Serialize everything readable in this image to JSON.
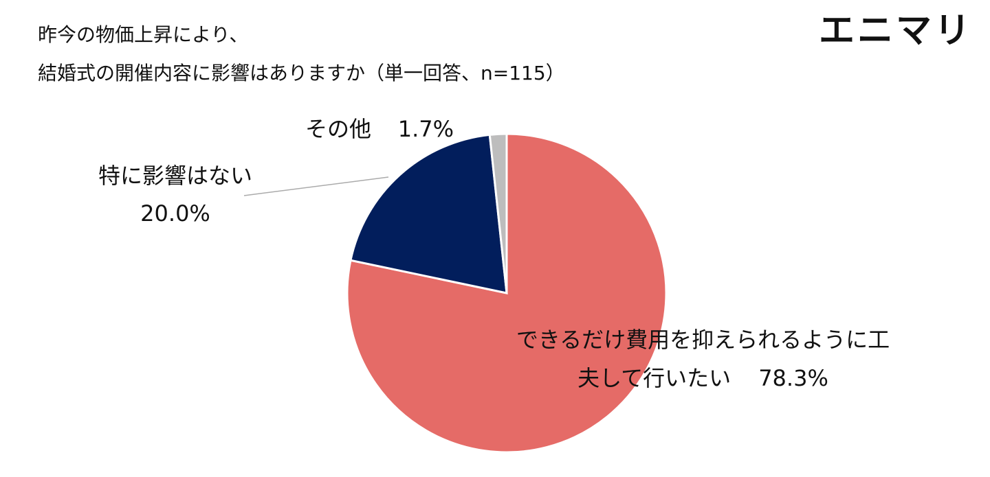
{
  "logo": "エニマリ",
  "chart_data": {
    "type": "pie",
    "title": [
      "昨今の物価上昇により、",
      "結婚式の開催内容に影響はありますか（単一回答、n=115）"
    ],
    "categories": [
      "できるだけ費用を抑えられるように工夫して行いたい",
      "特に影響はない",
      "その他"
    ],
    "values": [
      78.3,
      20.0,
      1.7
    ],
    "value_labels": [
      "78.3%",
      "20.0%",
      "1.7%"
    ],
    "colors": [
      "#e56b67",
      "#021e5c",
      "#bdbdbd"
    ]
  }
}
